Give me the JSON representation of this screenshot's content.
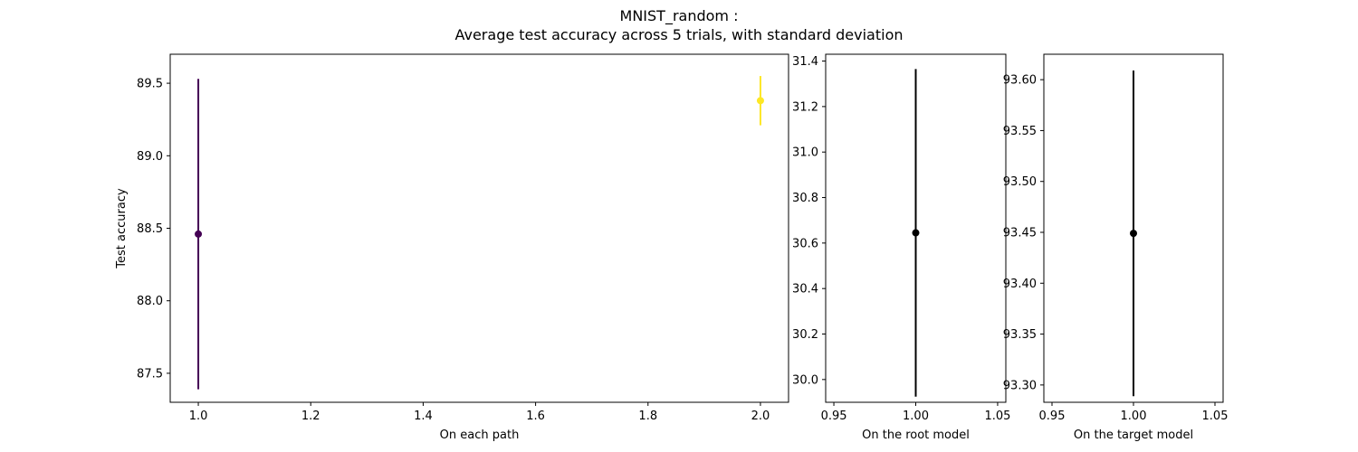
{
  "title_lines": [
    "MNIST_random :",
    "Average test accuracy across 5 trials, with standard deviation"
  ],
  "chart_data": [
    {
      "type": "scatter",
      "title": "",
      "xlabel": "On each path",
      "ylabel": "Test accuracy",
      "xlim": [
        0.95,
        2.05
      ],
      "ylim": [
        87.3,
        89.7
      ],
      "xticks": [
        1.0,
        1.2,
        1.4,
        1.6,
        1.8,
        2.0
      ],
      "xtick_labels": [
        "1.0",
        "1.2",
        "1.4",
        "1.6",
        "1.8",
        "2.0"
      ],
      "yticks": [
        87.5,
        88.0,
        88.5,
        89.0,
        89.5
      ],
      "ytick_labels": [
        "87.5",
        "88.0",
        "88.5",
        "89.0",
        "89.5"
      ],
      "grid": false,
      "points": [
        {
          "x": 1.0,
          "y": 88.46,
          "err": 1.07,
          "color": "#440154"
        },
        {
          "x": 2.0,
          "y": 89.38,
          "err": 0.17,
          "color": "#fde725"
        }
      ]
    },
    {
      "type": "scatter",
      "title": "",
      "xlabel": "On the root model",
      "ylabel": "",
      "xlim": [
        0.945,
        1.055
      ],
      "ylim": [
        29.9,
        31.43
      ],
      "xticks": [
        0.95,
        1.0,
        1.05
      ],
      "xtick_labels": [
        "0.95",
        "1.00",
        "1.05"
      ],
      "yticks": [
        30.0,
        30.2,
        30.4,
        30.6,
        30.8,
        31.0,
        31.2,
        31.4
      ],
      "ytick_labels": [
        "30.0",
        "30.2",
        "30.4",
        "30.6",
        "30.8",
        "31.0",
        "31.2",
        "31.4"
      ],
      "grid": false,
      "points": [
        {
          "x": 1.0,
          "y": 30.645,
          "err": 0.72,
          "color": "#000000"
        }
      ]
    },
    {
      "type": "scatter",
      "title": "",
      "xlabel": "On the target model",
      "ylabel": "",
      "xlim": [
        0.945,
        1.055
      ],
      "ylim": [
        93.283,
        93.625
      ],
      "xticks": [
        0.95,
        1.0,
        1.05
      ],
      "xtick_labels": [
        "0.95",
        "1.00",
        "1.05"
      ],
      "yticks": [
        93.3,
        93.35,
        93.4,
        93.45,
        93.5,
        93.55,
        93.6
      ],
      "ytick_labels": [
        "93.30",
        "93.35",
        "93.40",
        "93.45",
        "93.50",
        "93.55",
        "93.60"
      ],
      "grid": false,
      "points": [
        {
          "x": 1.0,
          "y": 93.449,
          "err": 0.16,
          "color": "#000000"
        }
      ]
    }
  ]
}
